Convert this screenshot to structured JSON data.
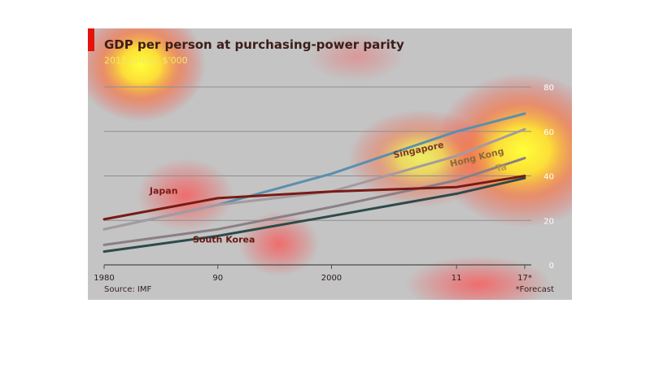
{
  "chart": {
    "title": "GDP per person at purchasing-power parity",
    "subtitle": "2011 prices, $'000",
    "source": "Source: IMF",
    "note": "*Forecast"
  },
  "chart_data": {
    "type": "line",
    "title": "GDP per person at purchasing-power parity",
    "subtitle": "2011 prices, $'000",
    "x": [
      1980,
      1990,
      2000,
      2011,
      2017
    ],
    "x_tick_labels": [
      "1980",
      "90",
      "2000",
      "11",
      "17*"
    ],
    "y_ticks": [
      0,
      20,
      40,
      60,
      80
    ],
    "ylim": [
      0,
      80
    ],
    "xlim": [
      1980,
      2017
    ],
    "grid": true,
    "y_axis_side": "right",
    "series": [
      {
        "name": "Singapore",
        "color": "#5b8fae",
        "points": [
          [
            1980,
            16
          ],
          [
            1990,
            27
          ],
          [
            2000,
            41
          ],
          [
            2011,
            60
          ],
          [
            2017,
            68
          ]
        ]
      },
      {
        "name": "Hong Kong",
        "color": "#a59aa0",
        "points": [
          [
            1980,
            16
          ],
          [
            1990,
            27
          ],
          [
            2000,
            33
          ],
          [
            2011,
            49
          ],
          [
            2017,
            61
          ]
        ]
      },
      {
        "name": "Taiwan",
        "color": "#8a7f86",
        "points": [
          [
            1980,
            9
          ],
          [
            1990,
            16
          ],
          [
            2000,
            26
          ],
          [
            2011,
            38
          ],
          [
            2017,
            48
          ]
        ]
      },
      {
        "name": "Japan",
        "color": "#7a1a14",
        "points": [
          [
            1980,
            20.5
          ],
          [
            1990,
            30
          ],
          [
            2000,
            33
          ],
          [
            2011,
            35
          ],
          [
            2017,
            40
          ]
        ]
      },
      {
        "name": "South Korea",
        "color": "#2e4a4a",
        "points": [
          [
            1980,
            6
          ],
          [
            1990,
            13
          ],
          [
            2000,
            22
          ],
          [
            2011,
            32
          ],
          [
            2017,
            39
          ]
        ]
      }
    ],
    "series_labels": [
      {
        "text": "Japan",
        "color": "#7a1a14"
      },
      {
        "text": "South Korea",
        "color": "#6a1410"
      },
      {
        "text": "Singapore",
        "color": "#7a3a2a"
      },
      {
        "text": "Hong Kong",
        "color": "#8a6a3a"
      },
      {
        "text": "Ta",
        "color": "#b89a40"
      }
    ],
    "source": "Source: IMF",
    "note": "*Forecast"
  }
}
